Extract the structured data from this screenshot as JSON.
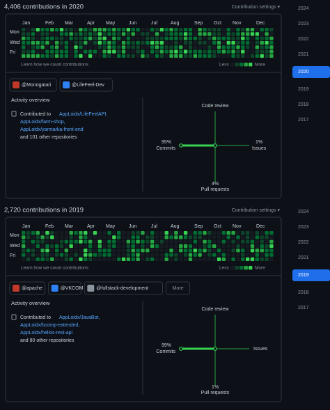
{
  "sections": [
    {
      "title": "4,406 contributions in 2020",
      "settings": "Contribution settings ▾",
      "months": [
        "Jan",
        "Feb",
        "Mar",
        "Apr",
        "May",
        "Jun",
        "Jul",
        "Aug",
        "Sep",
        "Oct",
        "Nov",
        "Dec"
      ],
      "days": [
        "Mon",
        "Wed",
        "Fri"
      ],
      "learn": "Learn how we count contributions",
      "legend_less": "Less",
      "legend_more": "More",
      "orgs": [
        "@Monogatari",
        "@LifeFeel-Dev"
      ],
      "activity": {
        "title": "Activity overview",
        "contributed_prefix": "Contributed to",
        "repos": [
          "AppLoidx/LifeFeelAPI,",
          "AppLoidx/farm-shop,",
          "AppLoidx/yarmarka-front-end"
        ],
        "other": "and 101 other repositories",
        "code_review": "Code review",
        "commits": "Commits",
        "commits_pct": "95%",
        "issues": "Issues",
        "issues_pct": "1%",
        "pull_requests": "Pull requests",
        "pull_requests_pct": "4%"
      },
      "years": [
        {
          "label": "2024"
        },
        {
          "label": "2023"
        },
        {
          "label": "2022"
        },
        {
          "label": "2021"
        },
        {
          "label": "2020",
          "selected": true
        },
        {
          "label": "2019"
        },
        {
          "label": "2018"
        },
        {
          "label": "2017"
        }
      ]
    },
    {
      "title": "2,720 contributions in 2019",
      "settings": "Contribution settings ▾",
      "months": [
        "Jan",
        "Feb",
        "Mar",
        "Apr",
        "May",
        "Jun",
        "Jul",
        "Aug",
        "Sep",
        "Oct",
        "Nov",
        "Dec"
      ],
      "days": [
        "Mon",
        "Wed",
        "Fri"
      ],
      "learn": "Learn how we count contributions",
      "legend_less": "Less",
      "legend_more": "More",
      "orgs": [
        "@apache",
        "@VKCOM",
        "@fullstack-development"
      ],
      "more_button": "More",
      "activity": {
        "title": "Activity overview",
        "contributed_prefix": "Contributed to",
        "repos": [
          "AppLoidx/JavaBot,",
          "AppLoidx/bcomp-extended,",
          "AppLoidx/helios-rest-api"
        ],
        "other": "and 80 other repositories",
        "code_review": "Code review",
        "commits": "Commits",
        "commits_pct": "99%",
        "issues": "Issues",
        "pull_requests": "Pull requests",
        "pull_requests_pct": "1%"
      },
      "years": [
        {
          "label": "2024"
        },
        {
          "label": "2023"
        },
        {
          "label": "2022"
        },
        {
          "label": "2021"
        },
        {
          "label": "2019",
          "selected": true
        },
        {
          "label": "2018"
        },
        {
          "label": "2017"
        }
      ]
    }
  ]
}
